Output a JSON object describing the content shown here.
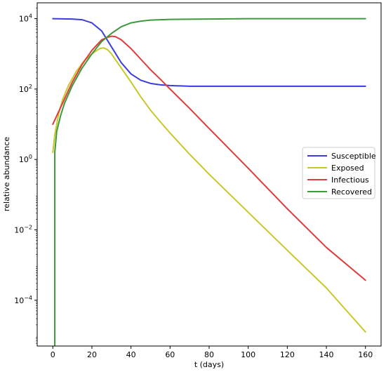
{
  "chart_data": {
    "type": "line",
    "xlabel": "t (days)",
    "ylabel": "relative abundance",
    "xlim": [
      -8,
      168
    ],
    "ylog": true,
    "ylim_log10": [
      -5.3,
      4.45
    ],
    "x_ticks": [
      {
        "value": 0,
        "label": "0"
      },
      {
        "value": 20,
        "label": "20"
      },
      {
        "value": 40,
        "label": "40"
      },
      {
        "value": 60,
        "label": "60"
      },
      {
        "value": 80,
        "label": "80"
      },
      {
        "value": 100,
        "label": "100"
      },
      {
        "value": 120,
        "label": "120"
      },
      {
        "value": 140,
        "label": "140"
      },
      {
        "value": 160,
        "label": "160"
      }
    ],
    "y_ticks": [
      {
        "log10": 4,
        "base": "10",
        "exp": "4"
      },
      {
        "log10": 2,
        "base": "10",
        "exp": "2"
      },
      {
        "log10": 0,
        "base": "10",
        "exp": "0"
      },
      {
        "log10": -2,
        "base": "10",
        "exp": "−2"
      },
      {
        "log10": -4,
        "base": "10",
        "exp": "−4"
      }
    ],
    "grid": false,
    "legend_position": "center-right",
    "series": [
      {
        "name": "Susceptible",
        "color": "#3b3bdf",
        "points": [
          [
            0,
            4.0
          ],
          [
            10,
            3.99
          ],
          [
            15,
            3.97
          ],
          [
            20,
            3.88
          ],
          [
            25,
            3.65
          ],
          [
            30,
            3.2
          ],
          [
            35,
            2.75
          ],
          [
            40,
            2.43
          ],
          [
            45,
            2.25
          ],
          [
            50,
            2.16
          ],
          [
            55,
            2.12
          ],
          [
            60,
            2.1
          ],
          [
            70,
            2.08
          ],
          [
            80,
            2.08
          ],
          [
            100,
            2.08
          ],
          [
            120,
            2.08
          ],
          [
            140,
            2.08
          ],
          [
            160,
            2.08
          ]
        ]
      },
      {
        "name": "Exposed",
        "color": "#c8c82a",
        "points": [
          [
            0,
            0.2
          ],
          [
            1,
            0.7
          ],
          [
            3,
            1.3
          ],
          [
            5,
            1.7
          ],
          [
            8,
            2.1
          ],
          [
            12,
            2.5
          ],
          [
            16,
            2.8
          ],
          [
            20,
            3.0
          ],
          [
            24,
            3.15
          ],
          [
            26,
            3.17
          ],
          [
            28,
            3.12
          ],
          [
            30,
            3.0
          ],
          [
            35,
            2.6
          ],
          [
            40,
            2.2
          ],
          [
            45,
            1.78
          ],
          [
            50,
            1.4
          ],
          [
            55,
            1.07
          ],
          [
            60,
            0.75
          ],
          [
            70,
            0.15
          ],
          [
            80,
            -0.42
          ],
          [
            100,
            -1.5
          ],
          [
            120,
            -2.58
          ],
          [
            140,
            -3.65
          ],
          [
            160,
            -4.9
          ]
        ]
      },
      {
        "name": "Infectious",
        "color": "#e03b3b",
        "points": [
          [
            0,
            1.0
          ],
          [
            5,
            1.6
          ],
          [
            10,
            2.2
          ],
          [
            15,
            2.7
          ],
          [
            20,
            3.1
          ],
          [
            25,
            3.4
          ],
          [
            28,
            3.47
          ],
          [
            30,
            3.5
          ],
          [
            32,
            3.49
          ],
          [
            35,
            3.4
          ],
          [
            40,
            3.15
          ],
          [
            45,
            2.85
          ],
          [
            50,
            2.55
          ],
          [
            55,
            2.28
          ],
          [
            60,
            2.0
          ],
          [
            70,
            1.45
          ],
          [
            80,
            0.88
          ],
          [
            100,
            -0.25
          ],
          [
            120,
            -1.4
          ],
          [
            140,
            -2.5
          ],
          [
            160,
            -3.43
          ]
        ]
      },
      {
        "name": "Recovered",
        "color": "#3c9a3c",
        "points": [
          [
            1,
            -5.3
          ],
          [
            1,
            0.2
          ],
          [
            2,
            0.8
          ],
          [
            4,
            1.25
          ],
          [
            6,
            1.6
          ],
          [
            10,
            2.1
          ],
          [
            15,
            2.6
          ],
          [
            20,
            3.0
          ],
          [
            25,
            3.35
          ],
          [
            30,
            3.58
          ],
          [
            35,
            3.77
          ],
          [
            40,
            3.88
          ],
          [
            45,
            3.93
          ],
          [
            50,
            3.96
          ],
          [
            60,
            3.98
          ],
          [
            80,
            3.99
          ],
          [
            100,
            4.0
          ],
          [
            120,
            4.0
          ],
          [
            140,
            4.0
          ],
          [
            160,
            4.0
          ]
        ]
      }
    ]
  }
}
